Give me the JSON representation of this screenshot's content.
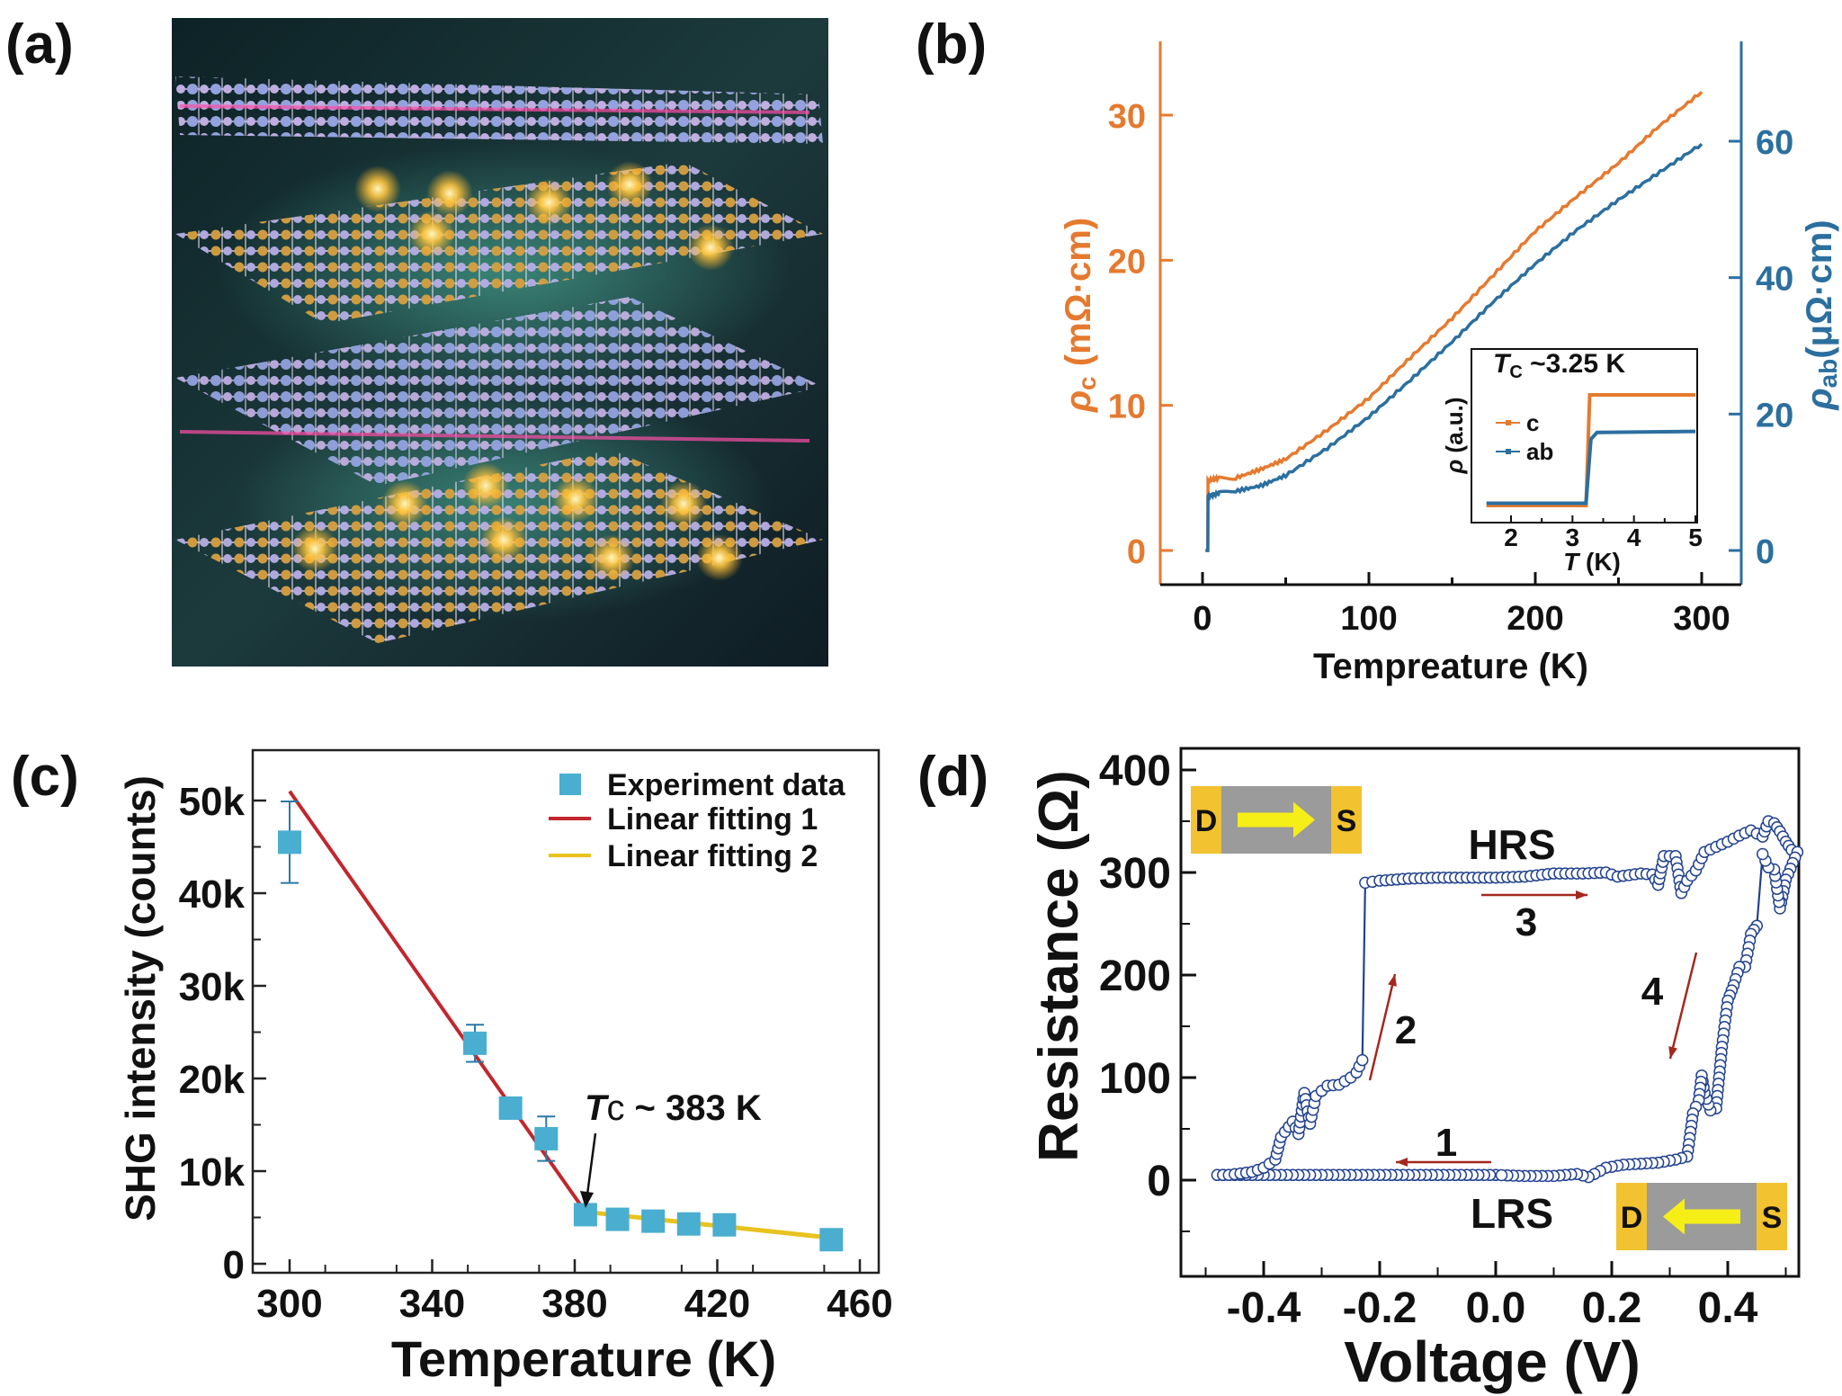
{
  "panels": {
    "a": "(a)",
    "b": "(b)",
    "c": "(c)",
    "d": "(d)"
  },
  "colors": {
    "orange": "#e57a2f",
    "blue": "#2b6f9f",
    "marker": "#49aed0",
    "fit1": "#c1272d",
    "fit2": "#e9c21e",
    "loop": "#22428f",
    "arrow": "#a3281d",
    "electrode": "#f2c230",
    "channel": "#9b9b9b",
    "current_arrow": "#f6ee17"
  },
  "chart_data": [
    {
      "panel": "b",
      "type": "line",
      "xlabel": "Tempreature (K)",
      "ylabel_left": {
        "symbol": "ρ",
        "sub": "c",
        "unit": " (mΩ·cm)"
      },
      "ylabel_right": {
        "symbol": "ρ",
        "sub": "ab",
        "unit": "(μΩ·cm)"
      },
      "xlim": [
        -25,
        310
      ],
      "ylim_left": [
        -2,
        35
      ],
      "ylim_right": [
        -4,
        70
      ],
      "xticks": [
        "0",
        "100",
        "200",
        "300"
      ],
      "yticks_left": [
        "0",
        "10",
        "20",
        "30"
      ],
      "yticks_right": [
        "0",
        "20",
        "40",
        "60"
      ],
      "series": [
        {
          "name": "c",
          "axis": "left",
          "x": [
            1.8,
            3.2,
            3.3,
            10,
            20,
            35,
            50,
            75,
            100,
            125,
            150,
            175,
            200,
            225,
            250,
            275,
            300
          ],
          "y": [
            0,
            0,
            4.8,
            5.0,
            5.0,
            5.6,
            6.3,
            8.3,
            10.5,
            13.3,
            16.0,
            19.0,
            22.0,
            24.4,
            26.7,
            29.3,
            31.6
          ]
        },
        {
          "name": "ab",
          "axis": "right",
          "x": [
            1.8,
            3.2,
            3.3,
            10,
            20,
            35,
            50,
            75,
            100,
            125,
            150,
            175,
            200,
            225,
            250,
            275,
            300
          ],
          "y": [
            0,
            0,
            8.0,
            8.4,
            8.7,
            9.5,
            11.0,
            15.0,
            19.6,
            25.0,
            30.6,
            36.5,
            42.0,
            47.0,
            51.4,
            55.5,
            59.6
          ]
        }
      ],
      "inset": {
        "title": {
          "symbol": "T",
          "sub": "C",
          "rest": " ~3.25 K"
        },
        "ylabel": {
          "symbol": "ρ",
          "rest": " (a.u.)"
        },
        "xlabel": {
          "symbol": "T",
          "rest": " (K)"
        },
        "xticks": [
          "2",
          "3",
          "4",
          "5"
        ],
        "xlim": [
          1.5,
          5
        ],
        "legend": [
          "c",
          "ab"
        ],
        "series": [
          {
            "name": "c",
            "x": [
              1.6,
              3.22,
              3.28,
              5.0
            ],
            "y": [
              0,
              0,
              1.0,
              1.0
            ]
          },
          {
            "name": "ab",
            "x": [
              1.6,
              3.22,
              3.3,
              3.4,
              5.0
            ],
            "y": [
              0.02,
              0.02,
              0.6,
              0.66,
              0.67
            ]
          }
        ]
      }
    },
    {
      "panel": "c",
      "type": "scatter",
      "xlabel": "Temperature (K)",
      "ylabel": "SHG intensity (counts)",
      "xlim": [
        290,
        465
      ],
      "ylim": [
        0,
        55000
      ],
      "xticks": [
        "300",
        "340",
        "380",
        "420",
        "460"
      ],
      "yticks": [
        "0",
        "10k",
        "20k",
        "30k",
        "40k",
        "50k"
      ],
      "legend": [
        "Experiment data",
        "Linear fitting 1",
        "Linear fitting 2"
      ],
      "annotation": {
        "symbol": "T",
        "sub": "c",
        "rest": " ~ 383 K"
      },
      "series": [
        {
          "name": "Experiment data",
          "x": [
            300,
            352,
            362,
            372,
            383,
            392,
            402,
            412,
            422,
            452
          ],
          "y": [
            45500,
            23800,
            16800,
            13500,
            5300,
            4800,
            4600,
            4300,
            4200,
            2600
          ],
          "err": [
            4400,
            2000,
            600,
            2400,
            400,
            400,
            400,
            400,
            400,
            400
          ]
        },
        {
          "name": "Linear fitting 1",
          "x": [
            300,
            383
          ],
          "y": [
            51000,
            5600
          ]
        },
        {
          "name": "Linear fitting 2",
          "x": [
            383,
            452
          ],
          "y": [
            5600,
            2800
          ]
        }
      ]
    },
    {
      "panel": "d",
      "type": "line",
      "xlabel": "Voltage (V)",
      "ylabel": "Resistance (Ω)",
      "xlim": [
        -0.5,
        0.52
      ],
      "ylim": [
        -100,
        420
      ],
      "xticks": [
        "-0.4",
        "-0.2",
        "0.0",
        "0.2",
        "0.4"
      ],
      "yticks": [
        "0",
        "100",
        "200",
        "300",
        "400"
      ],
      "labels": {
        "hrs": "HRS",
        "lrs": "LRS",
        "step1": "1",
        "step2": "2",
        "step3": "3",
        "step4": "4",
        "drain": "D",
        "source": "S"
      },
      "series": [
        {
          "x": [
            0,
            -0.04,
            -0.08,
            -0.12,
            -0.16,
            -0.2,
            -0.24,
            -0.28,
            -0.32,
            -0.36,
            -0.4,
            -0.44,
            -0.48,
            -0.46,
            -0.42,
            -0.4,
            -0.38,
            -0.37,
            -0.35,
            -0.34,
            -0.33,
            -0.32,
            -0.31,
            -0.29,
            -0.27,
            -0.25,
            -0.24,
            -0.23,
            -0.225,
            -0.2,
            -0.15,
            -0.1,
            -0.05,
            0,
            0.05,
            0.1,
            0.15,
            0.19,
            0.21,
            0.25,
            0.27,
            0.28,
            0.29,
            0.31,
            0.32,
            0.33,
            0.345,
            0.36,
            0.38,
            0.4,
            0.42,
            0.44,
            0.46,
            0.47,
            0.48,
            0.49,
            0.5,
            0.51,
            0.52,
            0.5,
            0.49,
            0.48,
            0.47,
            0.46,
            0.45,
            0.44,
            0.43,
            0.42,
            0.41,
            0.4,
            0.39,
            0.38,
            0.37,
            0.36,
            0.355,
            0.35,
            0.34,
            0.33,
            0.31,
            0.28,
            0.25,
            0.22,
            0.19,
            0.16,
            0.14,
            0.1,
            0.05,
            0
          ],
          "y": [
            5,
            5,
            5,
            5,
            5,
            5,
            5,
            5,
            5,
            5,
            5,
            5,
            5,
            5,
            8,
            12,
            20,
            42,
            57,
            45,
            85,
            55,
            82,
            92,
            93,
            100,
            105,
            117,
            290,
            292,
            294,
            295,
            295,
            295,
            296,
            299,
            299,
            300,
            296,
            299,
            298,
            288,
            316,
            316,
            280,
            292,
            302,
            320,
            325,
            330,
            336,
            341,
            335,
            350,
            348,
            340,
            330,
            322,
            320,
            293,
            265,
            303,
            305,
            318,
            248,
            240,
            208,
            208,
            190,
            175,
            130,
            70,
            68,
            85,
            102,
            78,
            65,
            23,
            20,
            17,
            16,
            15,
            12,
            3,
            6,
            4,
            4,
            5
          ]
        }
      ]
    }
  ]
}
